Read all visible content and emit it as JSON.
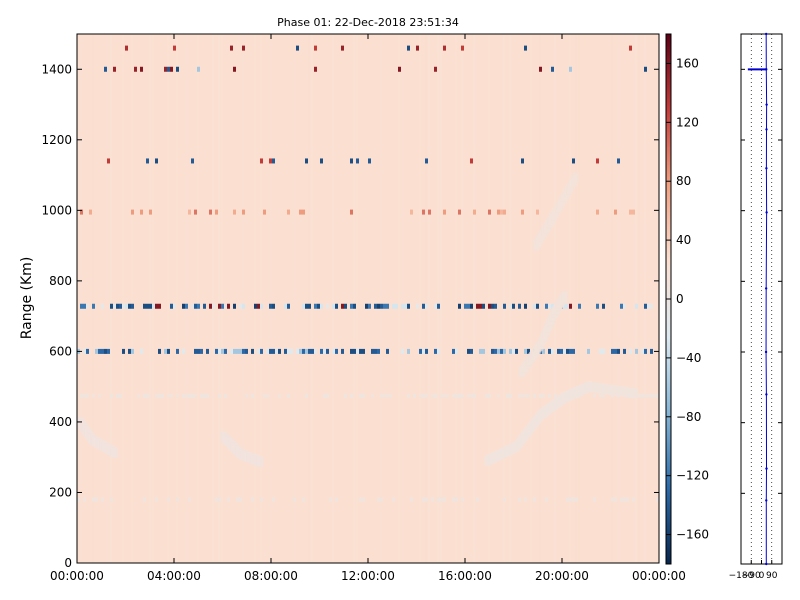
{
  "chart_data": [
    {
      "type": "heatmap",
      "title": "Phase 01: 22-Dec-2018 23:51:34",
      "xlabel": "",
      "ylabel": "Range (Km)",
      "xlim": [
        "00:00:00",
        "24:00:00"
      ],
      "ylim": [
        0,
        1500
      ],
      "x_ticks": [
        "00:00:00",
        "04:00:00",
        "08:00:00",
        "12:00:00",
        "16:00:00",
        "20:00:00",
        "00:00:00"
      ],
      "y_ticks": [
        0,
        200,
        400,
        600,
        800,
        1000,
        1200,
        1400
      ],
      "background_value": 25,
      "colorbar": {
        "range": [
          -180,
          180
        ],
        "ticks": [
          -160,
          -120,
          -80,
          -40,
          0,
          40,
          80,
          120,
          160
        ],
        "colors": [
          "#08264d",
          "#2c6aa8",
          "#87b6d6",
          "#ddeaf1",
          "#fbe0d2",
          "#f0a283",
          "#c43d3a",
          "#5b0015"
        ]
      },
      "bands": [
        {
          "range_km": 1460,
          "pattern": "speckle",
          "density": 0.06,
          "values": [
            150,
            140,
            -150,
            130
          ]
        },
        {
          "range_km": 1400,
          "pattern": "speckle",
          "density": 0.1,
          "values": [
            -150,
            160,
            -140,
            -60,
            150
          ]
        },
        {
          "range_km": 1140,
          "pattern": "speckle",
          "density": 0.06,
          "values": [
            -140,
            -150,
            130
          ]
        },
        {
          "range_km": 995,
          "pattern": "speckle",
          "density": 0.2,
          "values": [
            70,
            60,
            80,
            100
          ]
        },
        {
          "range_km": 728,
          "pattern": "dense",
          "density": 0.55,
          "values": [
            -150,
            -140,
            -160,
            -120,
            160,
            -30,
            -10
          ]
        },
        {
          "range_km": 600,
          "pattern": "dense",
          "density": 0.55,
          "values": [
            -140,
            -130,
            -150,
            -60,
            -20
          ]
        },
        {
          "range_km": 474,
          "pattern": "faint",
          "density": 0.5,
          "values": [
            5,
            10
          ]
        },
        {
          "range_km": 180,
          "pattern": "faint",
          "density": 0.3,
          "values": [
            5
          ]
        }
      ],
      "traces": [
        {
          "points": [
            [
              0.0,
              400
            ],
            [
              0.5,
              350
            ],
            [
              1.5,
              310
            ]
          ],
          "value": 8
        },
        {
          "points": [
            [
              5.9,
              360
            ],
            [
              6.6,
              310
            ],
            [
              7.5,
              285
            ]
          ],
          "value": 8
        },
        {
          "points": [
            [
              16.8,
              290
            ],
            [
              18.0,
              330
            ],
            [
              19.0,
              420
            ],
            [
              20.0,
              470
            ],
            [
              21.0,
              500
            ],
            [
              23.0,
              480
            ]
          ],
          "value": 6
        },
        {
          "points": [
            [
              18.2,
              540
            ],
            [
              19.0,
              620
            ],
            [
              19.5,
              700
            ],
            [
              20.0,
              760
            ]
          ],
          "value": 10
        },
        {
          "points": [
            [
              18.8,
              900
            ],
            [
              19.5,
              980
            ],
            [
              20.5,
              1100
            ]
          ],
          "value": 12
        }
      ]
    },
    {
      "type": "line",
      "xlabel": "",
      "ylabel": "",
      "xlim": [
        -180,
        180
      ],
      "ylim": [
        0,
        1500
      ],
      "x_ticks": [
        -180,
        -90,
        0,
        90
      ],
      "series": [
        {
          "x": [
            42,
            42,
            44,
            43,
            40,
            41,
            45,
            43,
            44,
            45,
            42,
            41
          ],
          "y": [
            0,
            180,
            270,
            480,
            600,
            780,
            995,
            1120,
            1230,
            1300,
            1400,
            1500
          ]
        }
      ],
      "marker_segment": {
        "x": [
          -120,
          40
        ],
        "y": 1400
      }
    }
  ]
}
